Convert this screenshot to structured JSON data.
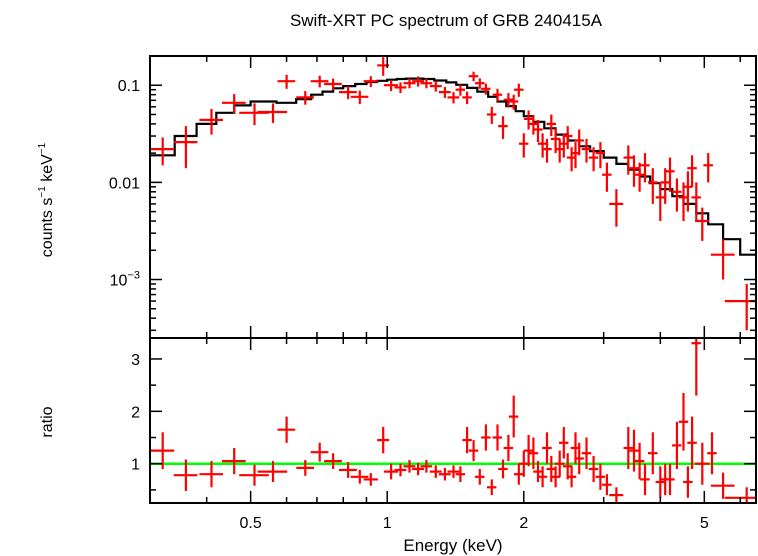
{
  "chart_data": {
    "type": "scatter",
    "title": "Swift-XRT PC spectrum of GRB 240415A",
    "xlabel": "Energy (keV)",
    "x_scale": "log",
    "xlim": [
      0.3,
      6.5
    ],
    "x_ticks": [
      {
        "value": 0.5,
        "label": "0.5"
      },
      {
        "value": 1,
        "label": "1"
      },
      {
        "value": 2,
        "label": "2"
      },
      {
        "value": 5,
        "label": "5"
      }
    ],
    "colors": {
      "data": "#ff0000",
      "model": "#000000",
      "unity_line": "#00ff00",
      "axes": "#000000"
    },
    "top_panel": {
      "ylabel_main": "counts s",
      "ylabel_exp1": "−1",
      "ylabel_mid": " keV",
      "ylabel_exp2": "−1",
      "y_scale": "log",
      "ylim": [
        0.00025,
        0.2
      ],
      "y_ticks": [
        {
          "value": 0.1,
          "label": "0.1"
        },
        {
          "value": 0.01,
          "label": "0.01"
        },
        {
          "value": 0.001,
          "label": "10",
          "exp": "−3"
        }
      ],
      "model_steps": [
        [
          0.3,
          0.019
        ],
        [
          0.34,
          0.03
        ],
        [
          0.38,
          0.04
        ],
        [
          0.42,
          0.052
        ],
        [
          0.46,
          0.062
        ],
        [
          0.5,
          0.068
        ],
        [
          0.57,
          0.066
        ],
        [
          0.63,
          0.072
        ],
        [
          0.68,
          0.08
        ],
        [
          0.72,
          0.086
        ],
        [
          0.76,
          0.093
        ],
        [
          0.8,
          0.098
        ],
        [
          0.85,
          0.103
        ],
        [
          0.9,
          0.108
        ],
        [
          0.95,
          0.111
        ],
        [
          1.0,
          0.114
        ],
        [
          1.05,
          0.116
        ],
        [
          1.1,
          0.117
        ],
        [
          1.15,
          0.117
        ],
        [
          1.2,
          0.116
        ],
        [
          1.27,
          0.112
        ],
        [
          1.35,
          0.107
        ],
        [
          1.42,
          0.101
        ],
        [
          1.5,
          0.094
        ],
        [
          1.58,
          0.086
        ],
        [
          1.67,
          0.076
        ],
        [
          1.75,
          0.068
        ],
        [
          1.83,
          0.061
        ],
        [
          1.92,
          0.054
        ],
        [
          2.0,
          0.048
        ],
        [
          2.1,
          0.042
        ],
        [
          2.22,
          0.036
        ],
        [
          2.35,
          0.031
        ],
        [
          2.5,
          0.027
        ],
        [
          2.65,
          0.0235
        ],
        [
          2.8,
          0.021
        ],
        [
          3.0,
          0.018
        ],
        [
          3.2,
          0.0155
        ],
        [
          3.4,
          0.0135
        ],
        [
          3.6,
          0.0115
        ],
        [
          3.8,
          0.0098
        ],
        [
          4.0,
          0.0085
        ],
        [
          4.25,
          0.0072
        ],
        [
          4.5,
          0.006
        ],
        [
          4.8,
          0.0048
        ],
        [
          5.1,
          0.0037
        ],
        [
          5.5,
          0.0026
        ],
        [
          6.0,
          0.0018
        ],
        [
          6.5,
          0.0018
        ]
      ],
      "points": [
        [
          0.32,
          0.022,
          0.02,
          0.007
        ],
        [
          0.36,
          0.026,
          0.02,
          0.012
        ],
        [
          0.41,
          0.044,
          0.02,
          0.013
        ],
        [
          0.46,
          0.066,
          0.02,
          0.015
        ],
        [
          0.51,
          0.052,
          0.025,
          0.013
        ],
        [
          0.56,
          0.053,
          0.025,
          0.012
        ],
        [
          0.6,
          0.11,
          0.015,
          0.018
        ],
        [
          0.66,
          0.075,
          0.015,
          0.012
        ],
        [
          0.71,
          0.11,
          0.015,
          0.015
        ],
        [
          0.76,
          0.103,
          0.015,
          0.014
        ],
        [
          0.82,
          0.085,
          0.015,
          0.013
        ],
        [
          0.87,
          0.076,
          0.015,
          0.012
        ],
        [
          0.92,
          0.11,
          0.012,
          0.014
        ],
        [
          0.98,
          0.16,
          0.01,
          0.035
        ],
        [
          1.02,
          0.1,
          0.012,
          0.013
        ],
        [
          1.07,
          0.095,
          0.01,
          0.012
        ],
        [
          1.12,
          0.105,
          0.01,
          0.012
        ],
        [
          1.17,
          0.11,
          0.01,
          0.013
        ],
        [
          1.22,
          0.105,
          0.01,
          0.012
        ],
        [
          1.28,
          0.098,
          0.01,
          0.012
        ],
        [
          1.34,
          0.085,
          0.01,
          0.011
        ],
        [
          1.4,
          0.075,
          0.01,
          0.01
        ],
        [
          1.45,
          0.09,
          0.008,
          0.012
        ],
        [
          1.5,
          0.075,
          0.008,
          0.011
        ],
        [
          1.55,
          0.124,
          0.008,
          0.014
        ],
        [
          1.6,
          0.105,
          0.008,
          0.013
        ],
        [
          1.65,
          0.092,
          0.008,
          0.012
        ],
        [
          1.7,
          0.05,
          0.008,
          0.01
        ],
        [
          1.75,
          0.08,
          0.008,
          0.012
        ],
        [
          1.8,
          0.038,
          0.008,
          0.01
        ],
        [
          1.85,
          0.071,
          0.008,
          0.012
        ],
        [
          1.9,
          0.068,
          0.008,
          0.012
        ],
        [
          1.95,
          0.09,
          0.008,
          0.014
        ],
        [
          2.0,
          0.025,
          0.008,
          0.007
        ],
        [
          2.05,
          0.045,
          0.008,
          0.01
        ],
        [
          2.1,
          0.04,
          0.008,
          0.009
        ],
        [
          2.15,
          0.035,
          0.008,
          0.009
        ],
        [
          2.2,
          0.025,
          0.008,
          0.007
        ],
        [
          2.25,
          0.022,
          0.008,
          0.006
        ],
        [
          2.3,
          0.04,
          0.008,
          0.01
        ],
        [
          2.35,
          0.028,
          0.008,
          0.008
        ],
        [
          2.4,
          0.022,
          0.008,
          0.006
        ],
        [
          2.45,
          0.025,
          0.008,
          0.007
        ],
        [
          2.5,
          0.03,
          0.008,
          0.008
        ],
        [
          2.55,
          0.018,
          0.008,
          0.005
        ],
        [
          2.6,
          0.02,
          0.008,
          0.006
        ],
        [
          2.65,
          0.027,
          0.008,
          0.008
        ],
        [
          2.75,
          0.022,
          0.008,
          0.006
        ],
        [
          2.85,
          0.018,
          0.008,
          0.005
        ],
        [
          2.95,
          0.02,
          0.008,
          0.006
        ],
        [
          3.05,
          0.012,
          0.008,
          0.004
        ],
        [
          3.2,
          0.006,
          0.012,
          0.0025
        ],
        [
          3.4,
          0.018,
          0.008,
          0.006
        ],
        [
          3.5,
          0.014,
          0.008,
          0.005
        ],
        [
          3.6,
          0.012,
          0.008,
          0.004
        ],
        [
          3.7,
          0.015,
          0.008,
          0.005
        ],
        [
          3.85,
          0.01,
          0.008,
          0.004
        ],
        [
          4.0,
          0.007,
          0.008,
          0.003
        ],
        [
          4.1,
          0.01,
          0.008,
          0.004
        ],
        [
          4.2,
          0.013,
          0.008,
          0.005
        ],
        [
          4.35,
          0.008,
          0.008,
          0.003
        ],
        [
          4.5,
          0.007,
          0.008,
          0.003
        ],
        [
          4.6,
          0.009,
          0.008,
          0.004
        ],
        [
          4.7,
          0.014,
          0.008,
          0.005
        ],
        [
          4.8,
          0.007,
          0.008,
          0.003
        ],
        [
          4.95,
          0.004,
          0.012,
          0.0015
        ],
        [
          5.1,
          0.015,
          0.008,
          0.005
        ],
        [
          5.5,
          0.0018,
          0.02,
          0.0008
        ],
        [
          6.2,
          0.0006,
          0.035,
          0.0003
        ]
      ]
    },
    "bottom_panel": {
      "ylabel": "ratio",
      "ylim": [
        0.25,
        3.4
      ],
      "y_ticks": [
        {
          "value": 1,
          "label": "1"
        },
        {
          "value": 2,
          "label": "2"
        },
        {
          "value": 3,
          "label": "3"
        }
      ],
      "unity_line": 1,
      "points": [
        [
          0.32,
          1.25,
          0.02,
          0.35
        ],
        [
          0.36,
          0.78,
          0.02,
          0.3
        ],
        [
          0.41,
          0.8,
          0.02,
          0.25
        ],
        [
          0.46,
          1.05,
          0.02,
          0.25
        ],
        [
          0.51,
          0.78,
          0.025,
          0.2
        ],
        [
          0.56,
          0.85,
          0.025,
          0.2
        ],
        [
          0.6,
          1.65,
          0.015,
          0.25
        ],
        [
          0.66,
          0.92,
          0.015,
          0.15
        ],
        [
          0.71,
          1.22,
          0.015,
          0.18
        ],
        [
          0.76,
          1.05,
          0.015,
          0.15
        ],
        [
          0.82,
          0.88,
          0.015,
          0.15
        ],
        [
          0.87,
          0.75,
          0.015,
          0.13
        ],
        [
          0.92,
          0.7,
          0.012,
          0.12
        ],
        [
          0.98,
          1.45,
          0.01,
          0.25
        ],
        [
          1.02,
          0.85,
          0.012,
          0.15
        ],
        [
          1.07,
          0.88,
          0.01,
          0.12
        ],
        [
          1.12,
          0.95,
          0.01,
          0.12
        ],
        [
          1.17,
          0.9,
          0.01,
          0.12
        ],
        [
          1.22,
          0.95,
          0.01,
          0.12
        ],
        [
          1.28,
          0.85,
          0.01,
          0.12
        ],
        [
          1.34,
          0.8,
          0.01,
          0.12
        ],
        [
          1.4,
          0.85,
          0.01,
          0.12
        ],
        [
          1.45,
          0.8,
          0.008,
          0.15
        ],
        [
          1.5,
          1.45,
          0.008,
          0.25
        ],
        [
          1.55,
          1.25,
          0.008,
          0.2
        ],
        [
          1.6,
          0.75,
          0.008,
          0.15
        ],
        [
          1.65,
          1.5,
          0.008,
          0.25
        ],
        [
          1.7,
          0.55,
          0.008,
          0.15
        ],
        [
          1.75,
          1.5,
          0.008,
          0.25
        ],
        [
          1.8,
          0.9,
          0.008,
          0.18
        ],
        [
          1.85,
          1.3,
          0.008,
          0.25
        ],
        [
          1.9,
          1.9,
          0.008,
          0.4
        ],
        [
          1.95,
          0.8,
          0.008,
          0.2
        ],
        [
          2.0,
          1.0,
          0.008,
          0.25
        ],
        [
          2.05,
          1.25,
          0.008,
          0.3
        ],
        [
          2.1,
          1.2,
          0.008,
          0.3
        ],
        [
          2.15,
          0.85,
          0.008,
          0.2
        ],
        [
          2.2,
          0.75,
          0.008,
          0.2
        ],
        [
          2.25,
          1.3,
          0.008,
          0.3
        ],
        [
          2.3,
          0.9,
          0.008,
          0.25
        ],
        [
          2.35,
          0.75,
          0.008,
          0.2
        ],
        [
          2.4,
          1.0,
          0.008,
          0.25
        ],
        [
          2.45,
          1.4,
          0.008,
          0.3
        ],
        [
          2.5,
          0.95,
          0.008,
          0.25
        ],
        [
          2.55,
          0.75,
          0.008,
          0.2
        ],
        [
          2.6,
          1.3,
          0.008,
          0.3
        ],
        [
          2.65,
          1.1,
          0.008,
          0.3
        ],
        [
          2.75,
          1.2,
          0.008,
          0.3
        ],
        [
          2.85,
          0.9,
          0.008,
          0.25
        ],
        [
          2.95,
          0.75,
          0.008,
          0.25
        ],
        [
          3.05,
          0.6,
          0.008,
          0.2
        ],
        [
          3.2,
          0.4,
          0.012,
          0.15
        ],
        [
          3.4,
          1.3,
          0.008,
          0.4
        ],
        [
          3.5,
          1.25,
          0.008,
          0.4
        ],
        [
          3.6,
          1.05,
          0.008,
          0.35
        ],
        [
          3.7,
          0.7,
          0.008,
          0.3
        ],
        [
          3.85,
          1.2,
          0.008,
          0.4
        ],
        [
          4.0,
          0.65,
          0.008,
          0.3
        ],
        [
          4.1,
          0.7,
          0.008,
          0.3
        ],
        [
          4.2,
          0.7,
          0.008,
          0.3
        ],
        [
          4.35,
          1.35,
          0.008,
          0.45
        ],
        [
          4.5,
          1.8,
          0.008,
          0.55
        ],
        [
          4.6,
          0.65,
          0.008,
          0.3
        ],
        [
          4.7,
          1.4,
          0.008,
          0.5
        ],
        [
          4.8,
          3.3,
          0.008,
          1.0
        ],
        [
          4.95,
          1.0,
          0.012,
          0.4
        ],
        [
          5.2,
          1.2,
          0.008,
          0.4
        ],
        [
          5.5,
          0.58,
          0.02,
          0.25
        ],
        [
          6.2,
          0.35,
          0.035,
          0.2
        ]
      ]
    }
  }
}
